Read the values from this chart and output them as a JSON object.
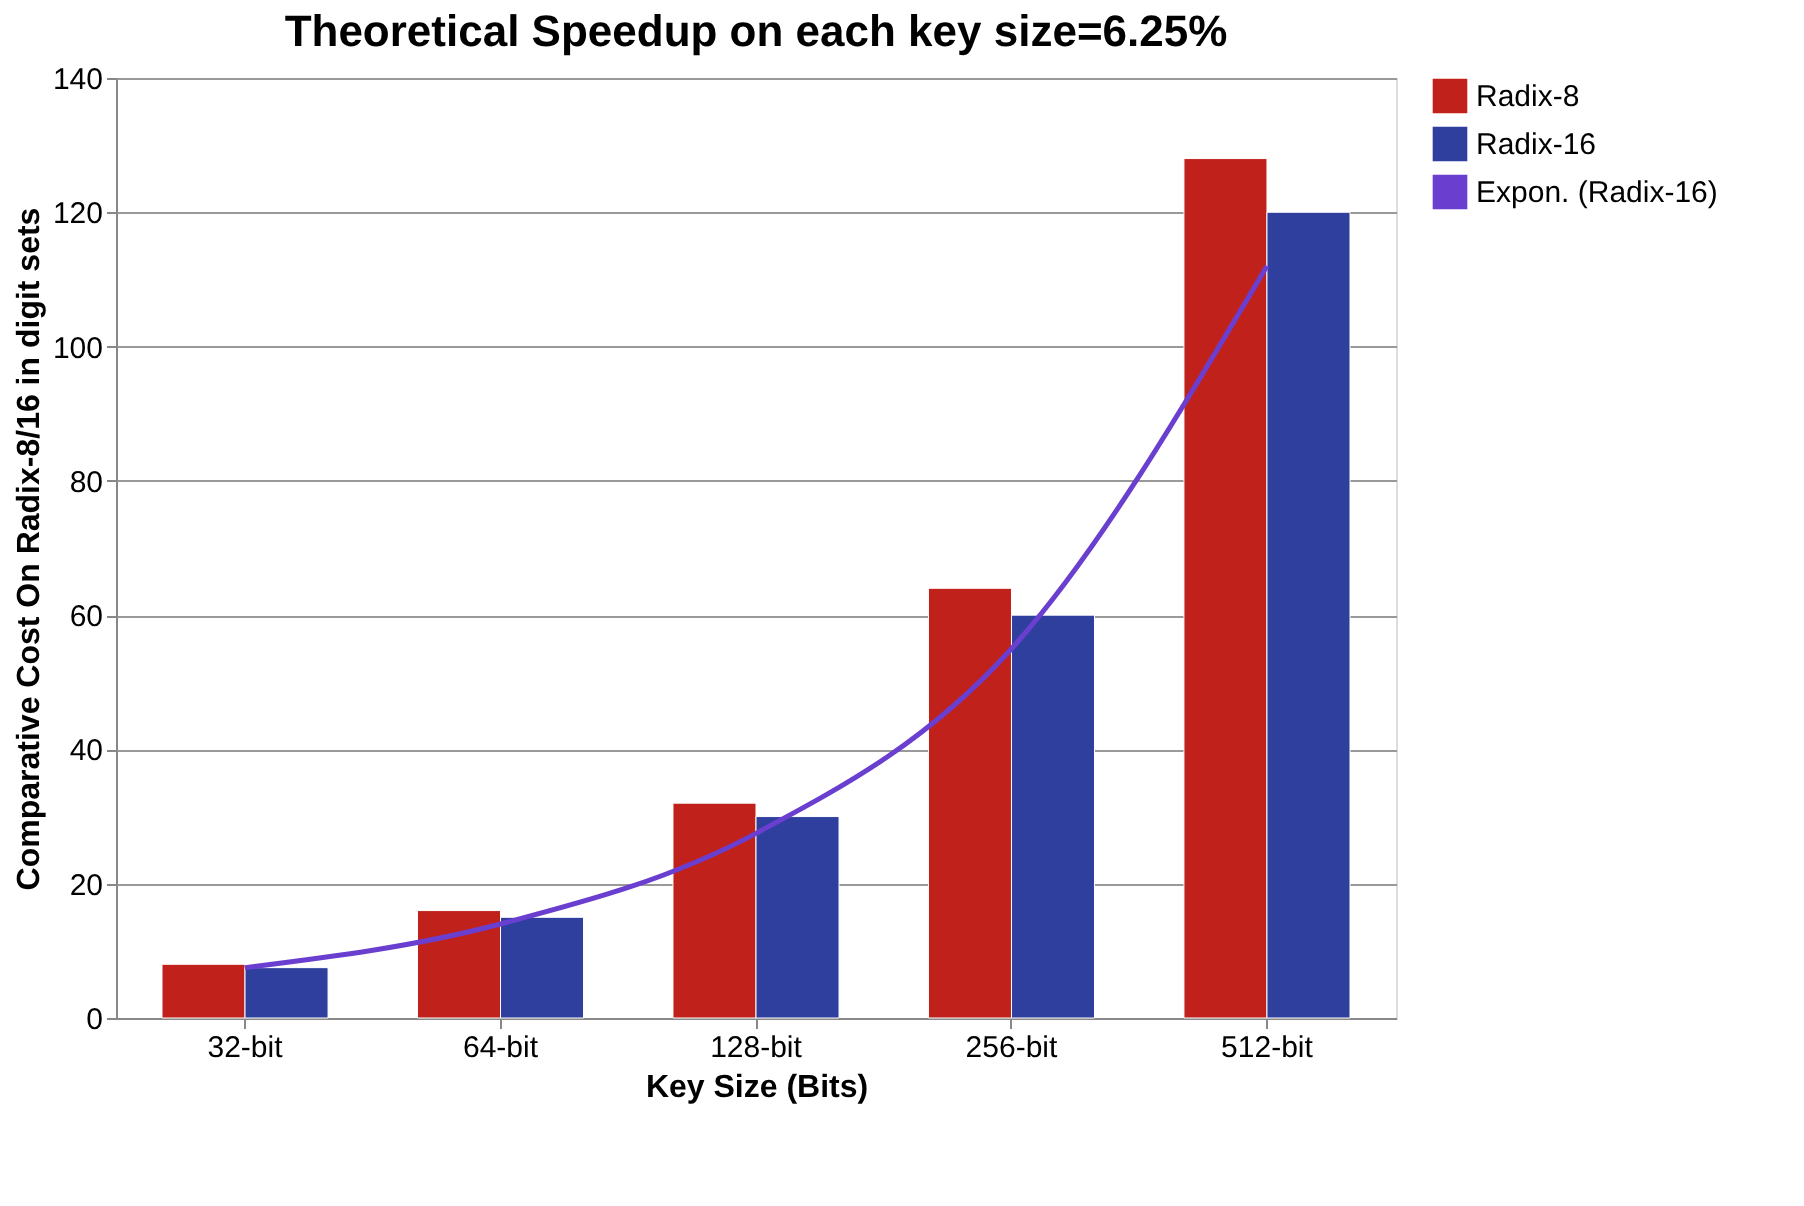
{
  "chart_data": {
    "type": "bar",
    "title": "Theoretical Speedup on each key size=6.25%",
    "xlabel": "Key Size (Bits)",
    "ylabel": "Comparative Cost On Radix-8/16 in digit sets",
    "categories": [
      "32-bit",
      "64-bit",
      "128-bit",
      "256-bit",
      "512-bit"
    ],
    "series": [
      {
        "name": "Radix-8",
        "color": "#c0211b",
        "values": [
          8,
          16,
          32,
          64,
          128
        ]
      },
      {
        "name": "Radix-16",
        "color": "#2e3f9e",
        "values": [
          7.5,
          15,
          30,
          60,
          120
        ]
      },
      {
        "name": "Expon. (Radix-16)",
        "type": "line",
        "color": "#6a3fd0",
        "x": [
          "32-bit",
          "64-bit",
          "128-bit",
          "256-bit",
          "512-bit"
        ],
        "values": [
          7.5,
          14,
          27.5,
          55,
          112
        ]
      }
    ],
    "ylim": [
      0,
      140
    ],
    "yticks": [
      0,
      20,
      40,
      60,
      80,
      100,
      120,
      140
    ],
    "grid": "y",
    "legend": "right"
  }
}
